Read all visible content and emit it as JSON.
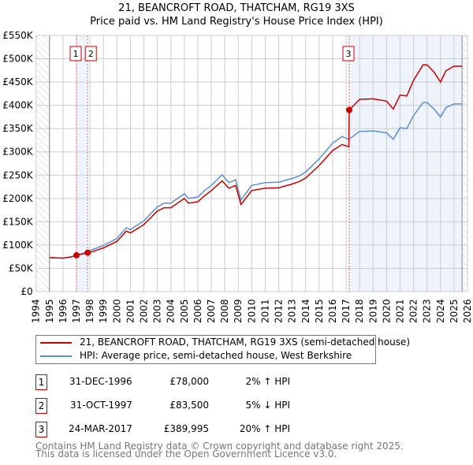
{
  "chart_data": {
    "type": "line",
    "title": "21, BEANCROFT ROAD, THATCHAM, RG19 3XS",
    "subtitle": "Price paid vs. HM Land Registry's House Price Index (HPI)",
    "xlim": [
      1994,
      2026
    ],
    "ylim": [
      0,
      550000
    ],
    "x_ticks": [
      "1994",
      "1995",
      "1996",
      "1997",
      "1998",
      "1999",
      "2000",
      "2001",
      "2002",
      "2003",
      "2004",
      "2005",
      "2006",
      "2007",
      "2008",
      "2009",
      "2010",
      "2011",
      "2012",
      "2013",
      "2014",
      "2015",
      "2016",
      "2017",
      "2018",
      "2019",
      "2020",
      "2021",
      "2022",
      "2023",
      "2024",
      "2025",
      "2026"
    ],
    "y_ticks": [
      "£0",
      "£50K",
      "£100K",
      "£150K",
      "£200K",
      "£250K",
      "£300K",
      "£350K",
      "£400K",
      "£450K",
      "£500K",
      "£550K"
    ],
    "grid": true,
    "colors": {
      "property": "#cc0000",
      "hpi": "#5b8fd4",
      "shade": "#eef3fc"
    },
    "series": [
      {
        "name": "21, BEANCROFT ROAD, THATCHAM, RG19 3XS (semi-detached house)",
        "color": "#cc0000",
        "x": [
          1995,
          1996,
          1996.5,
          1997,
          1997.83,
          1998,
          1999,
          2000,
          2000.7,
          2001,
          2002,
          2003,
          2003.5,
          2004,
          2005,
          2005.3,
          2006,
          2006.5,
          2007,
          2007.8,
          2008.3,
          2008.8,
          2009.2,
          2010,
          2011,
          2012,
          2013,
          2013.5,
          2014,
          2015,
          2016,
          2016.7,
          2017.2,
          2017.23,
          2018,
          2019,
          2020,
          2020.5,
          2021,
          2021.5,
          2022,
          2022.7,
          2023,
          2023.5,
          2024,
          2024.4,
          2025,
          2025.6
        ],
        "y": [
          73000,
          72000,
          74000,
          78000,
          83500,
          84000,
          94000,
          108000,
          130000,
          126000,
          144000,
          173000,
          180000,
          180000,
          200000,
          190000,
          193000,
          206000,
          217000,
          238000,
          222000,
          228000,
          187000,
          217000,
          222000,
          223000,
          231000,
          236000,
          244000,
          271000,
          303000,
          316000,
          311000,
          389995,
          413000,
          414000,
          409000,
          392000,
          422000,
          420000,
          454000,
          487000,
          487000,
          472000,
          450000,
          474000,
          484000,
          484000
        ]
      },
      {
        "name": "HPI: Average price, semi-detached house, West Berkshire",
        "color": "#5b8fd4",
        "x": [
          1995,
          1996,
          1996.5,
          1997,
          1998,
          1999,
          2000,
          2000.7,
          2001,
          2002,
          2003,
          2003.5,
          2004,
          2005,
          2005.3,
          2006,
          2006.5,
          2007,
          2007.8,
          2008.3,
          2008.8,
          2009.2,
          2010,
          2011,
          2012,
          2013,
          2013.5,
          2014,
          2015,
          2016,
          2016.7,
          2017.2,
          2018,
          2019,
          2020,
          2020.5,
          2021,
          2021.5,
          2022,
          2022.7,
          2023,
          2023.5,
          2024,
          2024.4,
          2025,
          2025.6
        ],
        "y": [
          73000,
          72000,
          74000,
          77000,
          88000,
          99000,
          114000,
          137000,
          133000,
          152000,
          182000,
          190000,
          190000,
          210000,
          200000,
          203000,
          217000,
          228000,
          251000,
          234000,
          240000,
          197000,
          228000,
          234000,
          235000,
          243000,
          248000,
          257000,
          285000,
          319000,
          333000,
          327000,
          344000,
          345000,
          341000,
          327000,
          352000,
          350000,
          378000,
          406000,
          406000,
          393000,
          375000,
          395000,
          403000,
          403000
        ]
      }
    ],
    "sales": [
      {
        "label": "1",
        "x": 1997.0,
        "y": 78000
      },
      {
        "label": "2",
        "x": 1997.83,
        "y": 83500
      },
      {
        "label": "3",
        "x": 2017.23,
        "y": 389995
      }
    ]
  },
  "title_line1": "21, BEANCROFT ROAD, THATCHAM, RG19 3XS",
  "title_line2": "Price paid vs. HM Land Registry's House Price Index (HPI)",
  "legend": {
    "property": "21, BEANCROFT ROAD, THATCHAM, RG19 3XS (semi-detached house)",
    "hpi": "HPI: Average price, semi-detached house, West Berkshire"
  },
  "transactions": [
    {
      "num": "1",
      "date": "31-DEC-1996",
      "price": "£78,000",
      "hpi": "2% ↑ HPI"
    },
    {
      "num": "2",
      "date": "31-OCT-1997",
      "price": "£83,500",
      "hpi": "5% ↓ HPI"
    },
    {
      "num": "3",
      "date": "24-MAR-2017",
      "price": "£389,995",
      "hpi": "20% ↑ HPI"
    }
  ],
  "footer": {
    "line1": "Contains HM Land Registry data © Crown copyright and database right 2025.",
    "line2": "This data is licensed under the Open Government Licence v3.0."
  }
}
